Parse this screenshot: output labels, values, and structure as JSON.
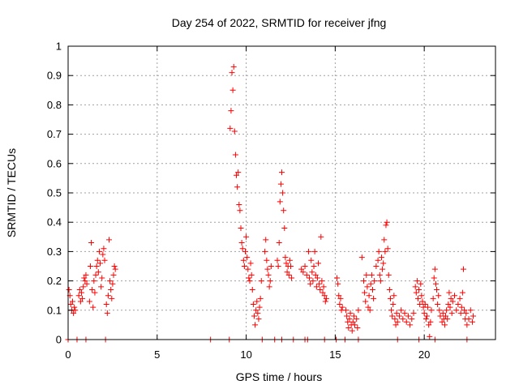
{
  "chart_data": {
    "type": "scatter",
    "title": "Day 254 of 2022, SRMTID for receiver jfng",
    "xlabel": "GPS time / hours",
    "ylabel": "SRMTID / TECUs",
    "xlim": [
      0,
      24
    ],
    "ylim": [
      0,
      1
    ],
    "x_ticks": [
      "0",
      "5",
      "10",
      "15",
      "20"
    ],
    "y_ticks": [
      "0",
      "0.1",
      "0.2",
      "0.3",
      "0.4",
      "0.5",
      "0.6",
      "0.7",
      "0.8",
      "0.9",
      "1"
    ],
    "grid": true,
    "marker": "+",
    "color": "#ff0000",
    "series": [
      {
        "name": "SRMTID",
        "points": [
          [
            0.05,
            0.17
          ],
          [
            0.1,
            0.15
          ],
          [
            0.15,
            0.12
          ],
          [
            0.2,
            0.1
          ],
          [
            0.25,
            0.13
          ],
          [
            0.3,
            0.09
          ],
          [
            0.35,
            0.11
          ],
          [
            0.4,
            0.1
          ],
          [
            0.6,
            0.15
          ],
          [
            0.65,
            0.17
          ],
          [
            0.7,
            0.13
          ],
          [
            0.75,
            0.16
          ],
          [
            0.8,
            0.14
          ],
          [
            0.85,
            0.18
          ],
          [
            0.9,
            0.21
          ],
          [
            0.95,
            0.2
          ],
          [
            1.0,
            0.22
          ],
          [
            1.05,
            0.19
          ],
          [
            1.2,
            0.13
          ],
          [
            1.25,
            0.25
          ],
          [
            1.3,
            0.33
          ],
          [
            1.35,
            0.17
          ],
          [
            1.4,
            0.11
          ],
          [
            1.45,
            0.2
          ],
          [
            1.5,
            0.16
          ],
          [
            1.55,
            0.22
          ],
          [
            1.6,
            0.25
          ],
          [
            1.65,
            0.27
          ],
          [
            1.7,
            0.23
          ],
          [
            1.75,
            0.3
          ],
          [
            1.8,
            0.26
          ],
          [
            1.85,
            0.18
          ],
          [
            1.9,
            0.21
          ],
          [
            1.95,
            0.29
          ],
          [
            2.0,
            0.31
          ],
          [
            2.05,
            0.27
          ],
          [
            2.15,
            0.12
          ],
          [
            2.2,
            0.09
          ],
          [
            2.25,
            0.15
          ],
          [
            2.3,
            0.34
          ],
          [
            2.35,
            0.2
          ],
          [
            2.4,
            0.17
          ],
          [
            2.45,
            0.14
          ],
          [
            2.5,
            0.19
          ],
          [
            2.55,
            0.22
          ],
          [
            2.6,
            0.25
          ],
          [
            2.65,
            0.24
          ],
          [
            9.1,
            0.72
          ],
          [
            9.15,
            0.78
          ],
          [
            9.2,
            0.91
          ],
          [
            9.25,
            0.85
          ],
          [
            9.3,
            0.93
          ],
          [
            9.35,
            0.71
          ],
          [
            9.4,
            0.63
          ],
          [
            9.45,
            0.56
          ],
          [
            9.5,
            0.52
          ],
          [
            9.55,
            0.57
          ],
          [
            9.6,
            0.46
          ],
          [
            9.65,
            0.44
          ],
          [
            9.7,
            0.38
          ],
          [
            9.75,
            0.33
          ],
          [
            9.8,
            0.31
          ],
          [
            9.85,
            0.27
          ],
          [
            9.9,
            0.25
          ],
          [
            9.95,
            0.3
          ],
          [
            10.0,
            0.35
          ],
          [
            10.05,
            0.28
          ],
          [
            10.1,
            0.24
          ],
          [
            10.15,
            0.21
          ],
          [
            10.2,
            0.2
          ],
          [
            10.25,
            0.26
          ],
          [
            10.3,
            0.22
          ],
          [
            10.35,
            0.17
          ],
          [
            10.4,
            0.12
          ],
          [
            10.45,
            0.08
          ],
          [
            10.5,
            0.05
          ],
          [
            10.55,
            0.1
          ],
          [
            10.6,
            0.13
          ],
          [
            10.65,
            0.09
          ],
          [
            10.7,
            0.07
          ],
          [
            10.75,
            0.11
          ],
          [
            10.8,
            0.14
          ],
          [
            10.85,
            0.2
          ],
          [
            11.05,
            0.3
          ],
          [
            11.1,
            0.34
          ],
          [
            11.15,
            0.27
          ],
          [
            11.2,
            0.24
          ],
          [
            11.25,
            0.22
          ],
          [
            11.3,
            0.18
          ],
          [
            11.35,
            0.2
          ],
          [
            11.4,
            0.25
          ],
          [
            11.75,
            0.27
          ],
          [
            11.8,
            0.25
          ],
          [
            11.85,
            0.33
          ],
          [
            11.9,
            0.47
          ],
          [
            11.95,
            0.53
          ],
          [
            12.0,
            0.57
          ],
          [
            12.05,
            0.5
          ],
          [
            12.1,
            0.44
          ],
          [
            12.15,
            0.38
          ],
          [
            12.2,
            0.28
          ],
          [
            12.25,
            0.26
          ],
          [
            12.3,
            0.23
          ],
          [
            12.35,
            0.25
          ],
          [
            12.4,
            0.22
          ],
          [
            12.45,
            0.27
          ],
          [
            12.5,
            0.25
          ],
          [
            12.55,
            0.21
          ],
          [
            13.1,
            0.24
          ],
          [
            13.2,
            0.23
          ],
          [
            13.3,
            0.25
          ],
          [
            13.4,
            0.22
          ],
          [
            13.5,
            0.3
          ],
          [
            13.55,
            0.21
          ],
          [
            13.6,
            0.19
          ],
          [
            13.65,
            0.27
          ],
          [
            13.7,
            0.23
          ],
          [
            13.75,
            0.2
          ],
          [
            13.8,
            0.25
          ],
          [
            13.85,
            0.3
          ],
          [
            13.9,
            0.22
          ],
          [
            13.95,
            0.18
          ],
          [
            14.0,
            0.21
          ],
          [
            14.05,
            0.26
          ],
          [
            14.1,
            0.19
          ],
          [
            14.15,
            0.17
          ],
          [
            14.2,
            0.35
          ],
          [
            14.25,
            0.2
          ],
          [
            14.3,
            0.16
          ],
          [
            14.35,
            0.18
          ],
          [
            14.4,
            0.15
          ],
          [
            14.45,
            0.13
          ],
          [
            14.5,
            0.14
          ],
          [
            15.1,
            0.21
          ],
          [
            15.15,
            0.19
          ],
          [
            15.2,
            0.15
          ],
          [
            15.25,
            0.12
          ],
          [
            15.3,
            0.14
          ],
          [
            15.35,
            0.1
          ],
          [
            15.4,
            0.11
          ],
          [
            15.6,
            0.1
          ],
          [
            15.65,
            0.08
          ],
          [
            15.7,
            0.06
          ],
          [
            15.75,
            0.04
          ],
          [
            15.8,
            0.07
          ],
          [
            15.85,
            0.09
          ],
          [
            15.9,
            0.05
          ],
          [
            15.95,
            0.03
          ],
          [
            16.0,
            0.06
          ],
          [
            16.05,
            0.08
          ],
          [
            16.1,
            0.05
          ],
          [
            16.2,
            0.07
          ],
          [
            16.25,
            0.04
          ],
          [
            16.3,
            0.1
          ],
          [
            16.5,
            0.28
          ],
          [
            16.6,
            0.2
          ],
          [
            16.65,
            0.16
          ],
          [
            16.7,
            0.13
          ],
          [
            16.75,
            0.22
          ],
          [
            16.8,
            0.18
          ],
          [
            16.85,
            0.11
          ],
          [
            16.9,
            0.15
          ],
          [
            16.95,
            0.1
          ],
          [
            17.0,
            0.19
          ],
          [
            17.05,
            0.22
          ],
          [
            17.1,
            0.17
          ],
          [
            17.15,
            0.14
          ],
          [
            17.2,
            0.2
          ],
          [
            17.3,
            0.25
          ],
          [
            17.4,
            0.27
          ],
          [
            17.45,
            0.3
          ],
          [
            17.5,
            0.22
          ],
          [
            17.55,
            0.2
          ],
          [
            17.6,
            0.28
          ],
          [
            17.65,
            0.24
          ],
          [
            17.7,
            0.26
          ],
          [
            17.75,
            0.34
          ],
          [
            17.8,
            0.3
          ],
          [
            17.85,
            0.39
          ],
          [
            17.9,
            0.4
          ],
          [
            17.95,
            0.31
          ],
          [
            18.0,
            0.22
          ],
          [
            18.05,
            0.17
          ],
          [
            18.1,
            0.14
          ],
          [
            18.15,
            0.1
          ],
          [
            18.2,
            0.08
          ],
          [
            18.25,
            0.12
          ],
          [
            18.3,
            0.15
          ],
          [
            18.35,
            0.07
          ],
          [
            18.4,
            0.05
          ],
          [
            18.45,
            0.09
          ],
          [
            18.5,
            0.06
          ],
          [
            18.6,
            0.08
          ],
          [
            18.7,
            0.1
          ],
          [
            18.8,
            0.07
          ],
          [
            18.9,
            0.09
          ],
          [
            19.0,
            0.06
          ],
          [
            19.1,
            0.08
          ],
          [
            19.2,
            0.05
          ],
          [
            19.3,
            0.07
          ],
          [
            19.4,
            0.09
          ],
          [
            19.5,
            0.18
          ],
          [
            19.55,
            0.16
          ],
          [
            19.6,
            0.2
          ],
          [
            19.65,
            0.14
          ],
          [
            19.7,
            0.17
          ],
          [
            19.75,
            0.12
          ],
          [
            19.8,
            0.19
          ],
          [
            19.85,
            0.15
          ],
          [
            19.9,
            0.13
          ],
          [
            19.95,
            0.11
          ],
          [
            20.0,
            0.09
          ],
          [
            20.05,
            0.12
          ],
          [
            20.1,
            0.07
          ],
          [
            20.15,
            0.08
          ],
          [
            20.2,
            0.11
          ],
          [
            20.25,
            0.05
          ],
          [
            20.3,
            0.01
          ],
          [
            20.35,
            0.06
          ],
          [
            20.4,
            0.1
          ],
          [
            20.5,
            0.14
          ],
          [
            20.55,
            0.21
          ],
          [
            20.6,
            0.24
          ],
          [
            20.65,
            0.19
          ],
          [
            20.7,
            0.17
          ],
          [
            20.75,
            0.12
          ],
          [
            20.8,
            0.15
          ],
          [
            20.85,
            0.1
          ],
          [
            20.9,
            0.08
          ],
          [
            21.0,
            0.06
          ],
          [
            21.05,
            0.09
          ],
          [
            21.1,
            0.07
          ],
          [
            21.15,
            0.05
          ],
          [
            21.2,
            0.08
          ],
          [
            21.25,
            0.1
          ],
          [
            21.3,
            0.07
          ],
          [
            21.35,
            0.12
          ],
          [
            21.4,
            0.16
          ],
          [
            21.45,
            0.11
          ],
          [
            21.5,
            0.14
          ],
          [
            21.55,
            0.09
          ],
          [
            21.6,
            0.13
          ],
          [
            21.7,
            0.15
          ],
          [
            21.8,
            0.1
          ],
          [
            21.9,
            0.12
          ],
          [
            22.0,
            0.14
          ],
          [
            22.05,
            0.09
          ],
          [
            22.1,
            0.11
          ],
          [
            22.15,
            0.16
          ],
          [
            22.2,
            0.24
          ],
          [
            22.25,
            0.1
          ],
          [
            22.3,
            0.07
          ],
          [
            22.35,
            0.09
          ],
          [
            22.4,
            0.05
          ],
          [
            22.5,
            0.07
          ],
          [
            22.6,
            0.1
          ],
          [
            22.7,
            0.06
          ],
          [
            22.75,
            0.08
          ],
          [
            0.0,
            0.0
          ],
          [
            0.5,
            0.0
          ],
          [
            1.0,
            0.0
          ],
          [
            2.1,
            0.0
          ],
          [
            8.0,
            0.0
          ],
          [
            9.05,
            0.0
          ],
          [
            10.9,
            0.0
          ],
          [
            11.6,
            0.0
          ],
          [
            12.0,
            0.0
          ],
          [
            12.65,
            0.0
          ],
          [
            13.3,
            0.0
          ],
          [
            13.45,
            0.0
          ],
          [
            14.4,
            0.0
          ],
          [
            15.05,
            0.0
          ],
          [
            15.55,
            0.0
          ],
          [
            16.3,
            0.0
          ],
          [
            18.5,
            0.0
          ],
          [
            19.7,
            0.0
          ],
          [
            20.6,
            0.0
          ],
          [
            22.4,
            0.0
          ]
        ]
      }
    ]
  }
}
